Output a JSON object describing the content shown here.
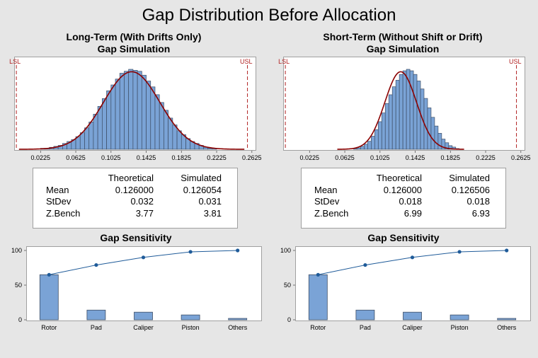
{
  "title": "Gap Distribution Before Allocation",
  "colors": {
    "bar": "#7aa3d6",
    "bar_edge": "#3d4e66",
    "curve": "#8b0000",
    "spec": "#b22222",
    "pareto_line": "#1f5b99",
    "background": "#e6e6e6"
  },
  "chart_data": [
    {
      "type": "bar",
      "panel": "left",
      "title": "Long-Term (With Drifts Only)",
      "subtitle": "Gap Simulation",
      "xlabel": "",
      "ylabel": "",
      "xlim": [
        -0.0075,
        0.2675
      ],
      "x_ticks": [
        "0.0225",
        "0.0625",
        "0.1025",
        "0.1425",
        "0.1825",
        "0.2225",
        "0.2625"
      ],
      "bin_start": 0.0225,
      "bin_width": 0.005,
      "values": [
        1,
        1,
        2,
        3,
        4,
        6,
        8,
        10,
        13,
        17,
        22,
        28,
        36,
        44,
        52,
        60,
        66,
        72,
        78,
        80,
        82,
        81,
        80,
        76,
        70,
        64,
        56,
        48,
        40,
        32,
        25,
        19,
        15,
        11,
        8,
        6,
        4,
        2,
        1,
        1
      ],
      "spec_limits": [
        {
          "label": "LSL",
          "x": -0.005
        },
        {
          "label": "USL",
          "x": 0.2575
        }
      ],
      "fit": {
        "mean": 0.126,
        "stdev": 0.032
      }
    },
    {
      "type": "bar",
      "panel": "right",
      "title": "Short-Term (Without Shift or Drift)",
      "subtitle": "Gap Simulation",
      "xlabel": "",
      "ylabel": "",
      "xlim": [
        -0.0075,
        0.2675
      ],
      "x_ticks": [
        "0.0225",
        "0.0625",
        "0.1025",
        "0.1425",
        "0.1825",
        "0.2225",
        "0.2625"
      ],
      "bin_start": 0.0725,
      "bin_width": 0.004,
      "values": [
        1,
        2,
        4,
        7,
        11,
        18,
        27,
        38,
        50,
        63,
        75,
        86,
        95,
        103,
        108,
        110,
        108,
        103,
        94,
        83,
        70,
        57,
        44,
        32,
        22,
        14,
        9,
        5,
        3,
        1
      ],
      "spec_limits": [
        {
          "label": "LSL",
          "x": -0.005
        },
        {
          "label": "USL",
          "x": 0.2575
        }
      ],
      "fit": {
        "mean": 0.126,
        "stdev": 0.018
      }
    },
    {
      "type": "bar",
      "panel": "left-sensitivity",
      "title": "Gap Sensitivity",
      "categories": [
        "Rotor",
        "Pad",
        "Caliper",
        "Piston",
        "Others"
      ],
      "values": [
        65,
        14,
        11,
        7,
        2
      ],
      "cumulative": [
        65,
        79,
        90,
        98,
        100
      ],
      "ylim": [
        0,
        100
      ],
      "y_ticks": [
        "0",
        "50",
        "100"
      ]
    },
    {
      "type": "bar",
      "panel": "right-sensitivity",
      "title": "Gap Sensitivity",
      "categories": [
        "Rotor",
        "Pad",
        "Caliper",
        "Piston",
        "Others"
      ],
      "values": [
        65,
        14,
        11,
        7,
        2
      ],
      "cumulative": [
        65,
        79,
        90,
        98,
        100
      ],
      "ylim": [
        0,
        100
      ],
      "y_ticks": [
        "0",
        "50",
        "100"
      ]
    }
  ],
  "stats": [
    {
      "headers": [
        "Theoretical",
        "Simulated"
      ],
      "rows": [
        {
          "label": "Mean",
          "theoretical": "0.126000",
          "simulated": "0.126054"
        },
        {
          "label": "StDev",
          "theoretical": "0.032",
          "simulated": "0.031"
        },
        {
          "label": "Z.Bench",
          "theoretical": "3.77",
          "simulated": "3.81"
        }
      ]
    },
    {
      "headers": [
        "Theoretical",
        "Simulated"
      ],
      "rows": [
        {
          "label": "Mean",
          "theoretical": "0.126000",
          "simulated": "0.126506"
        },
        {
          "label": "StDev",
          "theoretical": "0.018",
          "simulated": "0.018"
        },
        {
          "label": "Z.Bench",
          "theoretical": "6.99",
          "simulated": "6.93"
        }
      ]
    }
  ]
}
